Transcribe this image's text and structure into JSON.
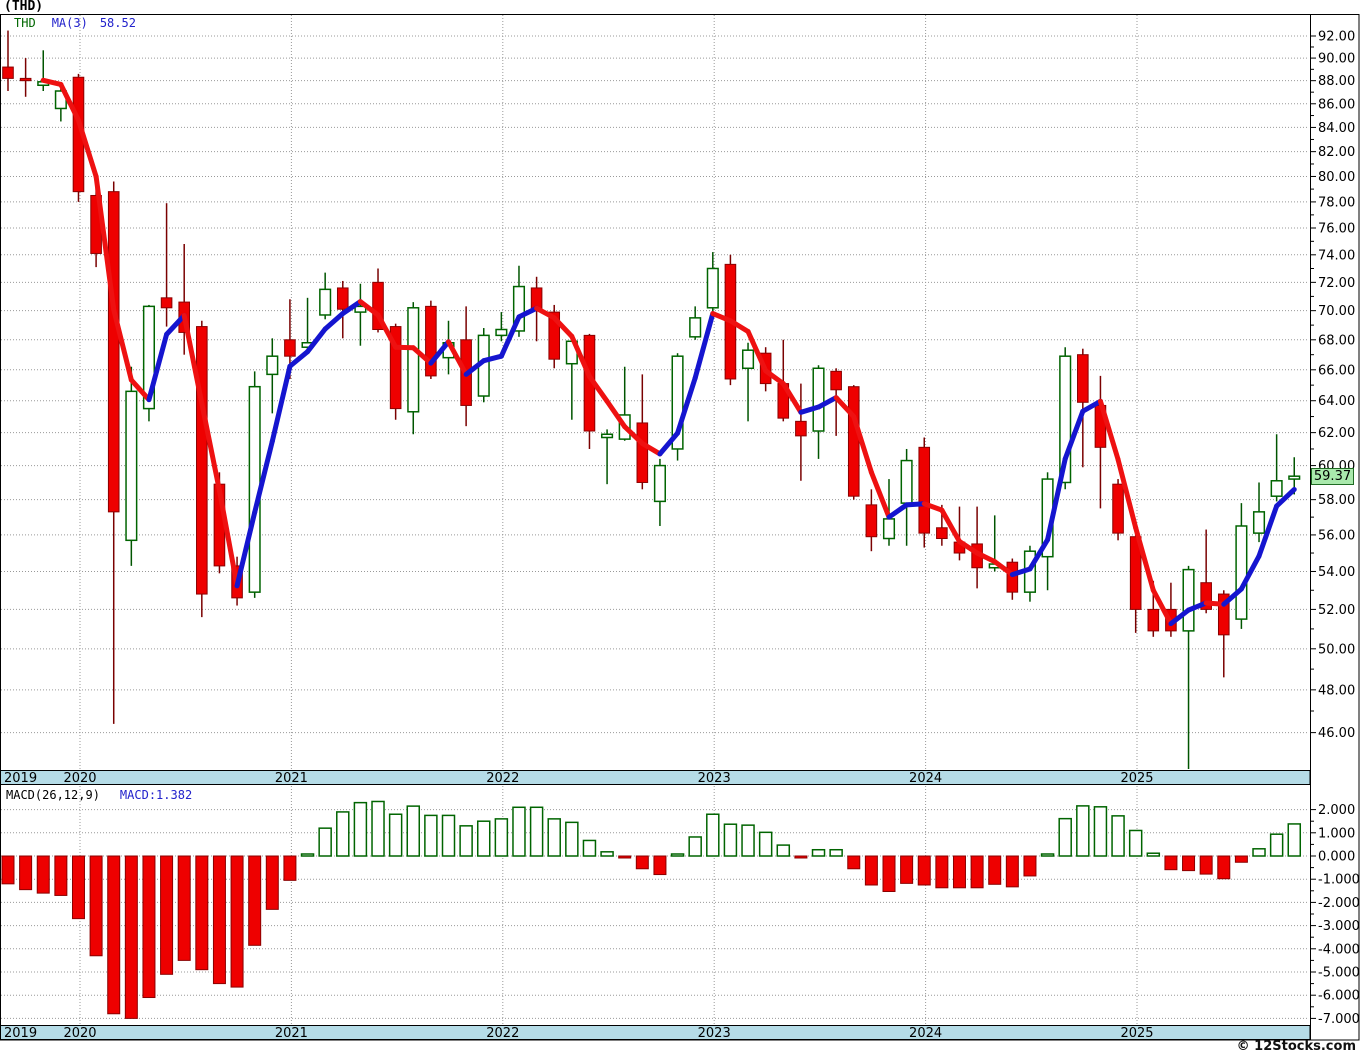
{
  "title": "(THD)",
  "legend": {
    "symbol": "THD",
    "ma_label": "MA(3)",
    "ma_value": "58.52"
  },
  "macd_panel": {
    "label": "MACD(26,12,9)",
    "current": "MACD:1.382"
  },
  "price_tag": "59.37",
  "footer": "© 12Stocks.com",
  "colors": {
    "up": "#006400",
    "up_fill": "#FFFFFF",
    "down": "#8B0000",
    "down_fill": "#EE0000",
    "wick_up": "#005500",
    "wick_down": "#7A0101",
    "ma_rising": "#1515CF",
    "ma_falling": "#EE1111",
    "grid": "#999999",
    "band": "#B5DCE7",
    "border": "#000000",
    "tag_bg": "#A9E9AC",
    "tag_border": "#1F6B23"
  },
  "axes": {
    "price_labels": [
      "92.00",
      "90.00",
      "88.00",
      "86.00",
      "84.00",
      "82.00",
      "80.00",
      "78.00",
      "76.00",
      "74.00",
      "72.00",
      "70.00",
      "68.00",
      "66.00",
      "64.00",
      "62.00",
      "60.00",
      "58.00",
      "56.00",
      "54.00",
      "52.00",
      "50.00",
      "48.00",
      "46.00"
    ],
    "macd_labels": [
      "2.000",
      "1.000",
      "0.000",
      "-1.000",
      "-2.000",
      "-3.000",
      "-4.000",
      "-5.000",
      "-6.000",
      "-7.000"
    ],
    "years": [
      "2019",
      "2020",
      "2021",
      "2022",
      "2023",
      "2024",
      "2025"
    ]
  },
  "chart_data": {
    "type": "candlestick",
    "symbol": "THD",
    "interval": "monthly",
    "start": "2019-09",
    "price_axis": {
      "min": 46,
      "max": 92,
      "step": 2,
      "scale": "log"
    },
    "macd_axis": {
      "min": -7,
      "max": 2,
      "step": 1
    },
    "current_price": 59.37,
    "ma3_current": 58.52,
    "ohlc": [
      [
        89.2,
        92.5,
        87.1,
        88.2
      ],
      [
        88.2,
        90.0,
        86.6,
        88.0
      ],
      [
        87.6,
        90.7,
        87.1,
        87.9
      ],
      [
        85.6,
        87.3,
        84.5,
        87.1
      ],
      [
        88.3,
        88.6,
        78.0,
        78.8
      ],
      [
        78.5,
        79.4,
        73.1,
        74.1
      ],
      [
        78.8,
        79.6,
        46.4,
        57.3
      ],
      [
        55.7,
        66.2,
        54.3,
        64.6
      ],
      [
        63.5,
        70.4,
        62.7,
        70.3
      ],
      [
        70.9,
        77.9,
        68.9,
        70.2
      ],
      [
        70.6,
        74.8,
        67.0,
        68.5
      ],
      [
        68.9,
        69.3,
        51.6,
        52.8
      ],
      [
        58.9,
        59.6,
        53.9,
        54.3
      ],
      [
        54.3,
        54.8,
        52.2,
        52.6
      ],
      [
        52.9,
        65.9,
        52.6,
        64.9
      ],
      [
        65.7,
        68.1,
        63.2,
        66.9
      ],
      [
        68.0,
        70.8,
        65.4,
        66.9
      ],
      [
        67.5,
        70.9,
        67.2,
        67.8
      ],
      [
        69.7,
        72.7,
        69.4,
        71.5
      ],
      [
        71.6,
        72.1,
        68.1,
        70.1
      ],
      [
        69.9,
        71.9,
        67.6,
        70.3
      ],
      [
        72.0,
        73.0,
        68.5,
        68.7
      ],
      [
        68.9,
        69.1,
        62.8,
        63.5
      ],
      [
        63.3,
        70.6,
        61.9,
        70.2
      ],
      [
        70.3,
        70.7,
        65.4,
        65.6
      ],
      [
        66.8,
        69.3,
        65.7,
        67.8
      ],
      [
        68.0,
        70.3,
        62.4,
        63.7
      ],
      [
        64.3,
        68.8,
        63.9,
        68.3
      ],
      [
        68.3,
        69.9,
        67.9,
        68.7
      ],
      [
        68.6,
        73.2,
        68.2,
        71.7
      ],
      [
        71.6,
        72.4,
        67.9,
        70.1
      ],
      [
        69.9,
        70.4,
        66.1,
        66.7
      ],
      [
        66.4,
        68.3,
        62.8,
        67.9
      ],
      [
        68.3,
        68.4,
        61.0,
        62.1
      ],
      [
        61.7,
        62.2,
        58.9,
        61.9
      ],
      [
        61.6,
        66.2,
        61.5,
        63.1
      ],
      [
        62.6,
        65.7,
        58.6,
        59.0
      ],
      [
        57.9,
        60.4,
        56.5,
        60.0
      ],
      [
        61.0,
        67.1,
        60.3,
        66.9
      ],
      [
        68.2,
        70.3,
        68.0,
        69.5
      ],
      [
        70.2,
        74.2,
        69.9,
        73.0
      ],
      [
        73.3,
        74.0,
        65.0,
        65.4
      ],
      [
        66.1,
        67.8,
        62.7,
        67.3
      ],
      [
        67.1,
        67.5,
        64.6,
        65.1
      ],
      [
        65.1,
        68.0,
        62.7,
        62.9
      ],
      [
        62.7,
        65.1,
        59.1,
        61.8
      ],
      [
        62.1,
        66.3,
        60.4,
        66.1
      ],
      [
        65.9,
        66.1,
        61.8,
        64.7
      ],
      [
        64.9,
        65.0,
        58.0,
        58.2
      ],
      [
        57.7,
        58.6,
        55.1,
        55.9
      ],
      [
        55.8,
        59.2,
        55.4,
        56.9
      ],
      [
        57.8,
        61.0,
        55.4,
        60.3
      ],
      [
        61.1,
        61.7,
        55.3,
        56.1
      ],
      [
        56.4,
        57.7,
        55.4,
        55.8
      ],
      [
        55.6,
        57.6,
        54.6,
        55.0
      ],
      [
        55.5,
        57.6,
        53.1,
        54.2
      ],
      [
        54.2,
        57.1,
        54.0,
        54.4
      ],
      [
        54.5,
        54.7,
        52.5,
        52.9
      ],
      [
        52.9,
        55.4,
        52.4,
        55.1
      ],
      [
        54.8,
        59.6,
        53.0,
        59.2
      ],
      [
        59.0,
        67.5,
        58.6,
        66.9
      ],
      [
        67.0,
        67.4,
        59.9,
        63.9
      ],
      [
        63.7,
        65.6,
        57.5,
        61.1
      ],
      [
        58.9,
        59.2,
        55.7,
        56.1
      ],
      [
        55.9,
        56.3,
        50.8,
        52.0
      ],
      [
        52.0,
        53.5,
        50.6,
        50.9
      ],
      [
        52.0,
        53.4,
        50.6,
        50.9
      ],
      [
        50.9,
        54.3,
        44.3,
        54.1
      ],
      [
        53.4,
        56.3,
        51.8,
        52.0
      ],
      [
        52.8,
        53.0,
        48.6,
        50.7
      ],
      [
        51.5,
        57.8,
        51.0,
        56.5
      ],
      [
        56.1,
        59.0,
        55.6,
        57.3
      ],
      [
        58.2,
        61.9,
        57.9,
        59.1
      ],
      [
        59.2,
        60.5,
        58.3,
        59.37
      ]
    ],
    "macd_hist": [
      -1.2,
      -1.45,
      -1.6,
      -1.7,
      -2.7,
      -4.3,
      -6.8,
      -7.0,
      -6.1,
      -5.1,
      -4.5,
      -4.9,
      -5.5,
      -5.65,
      -3.85,
      -2.3,
      -1.05,
      0.03,
      1.2,
      1.9,
      2.3,
      2.35,
      1.8,
      2.15,
      1.75,
      1.75,
      1.3,
      1.5,
      1.6,
      2.1,
      2.1,
      1.6,
      1.45,
      0.67,
      0.18,
      -0.05,
      -0.55,
      -0.8,
      0.05,
      0.82,
      1.8,
      1.37,
      1.33,
      1.02,
      0.47,
      -0.05,
      0.27,
      0.27,
      -0.55,
      -1.25,
      -1.53,
      -1.18,
      -1.25,
      -1.37,
      -1.37,
      -1.37,
      -1.22,
      -1.33,
      -0.86,
      0.05,
      1.61,
      2.16,
      2.12,
      1.73,
      1.1,
      0.12,
      -0.59,
      -0.63,
      -0.78,
      -0.98,
      -0.27,
      0.31,
      0.94,
      1.382
    ]
  }
}
